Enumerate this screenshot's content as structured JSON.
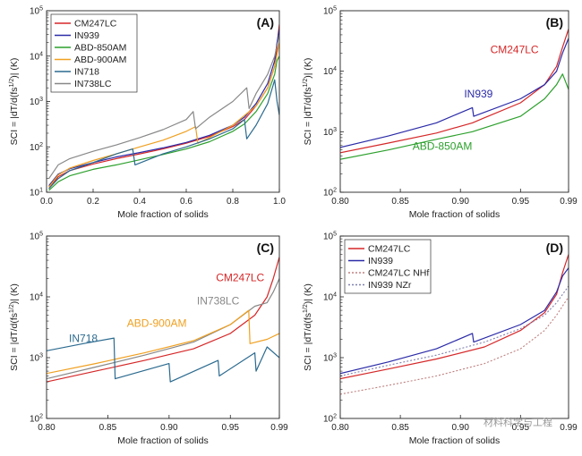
{
  "colors": {
    "CM247LC": "#d62728",
    "IN939": "#2a2aa8",
    "ABD-850AM": "#2ca02c",
    "ABD-900AM": "#f0a020",
    "IN718": "#2b6a8f",
    "IN738LC": "#888888",
    "CM247LC NHf": "#c08080",
    "IN939 NZr": "#8080b0"
  },
  "watermark": "材料科学与工程",
  "chart_data": [
    {
      "panel": "(A)",
      "type": "line",
      "xlabel": "Mole fraction of solids",
      "ylabel": "SCI = |dT/d(fs^1/2)| (K)",
      "xlim": [
        0,
        1.0
      ],
      "ylim": [
        10,
        100000
      ],
      "yscale": "log",
      "xticks": [
        "0.0",
        "0.2",
        "0.4",
        "0.6",
        "0.8",
        "1.0"
      ],
      "yticks": [
        "10^1",
        "10^2",
        "10^3",
        "10^4",
        "10^5"
      ],
      "legend": [
        "CM247LC",
        "IN939",
        "ABD-850AM",
        "ABD-900AM",
        "IN718",
        "IN738LC"
      ],
      "legend_position": "top-left",
      "series": [
        {
          "name": "CM247LC",
          "x": [
            0.01,
            0.05,
            0.1,
            0.2,
            0.3,
            0.4,
            0.5,
            0.6,
            0.7,
            0.8,
            0.85,
            0.9,
            0.95,
            0.98,
            0.99,
            0.995,
            1.0
          ],
          "y": [
            12,
            22,
            30,
            42,
            55,
            70,
            90,
            120,
            170,
            280,
            400,
            800,
            2000,
            6000,
            15000,
            30000,
            50000
          ]
        },
        {
          "name": "IN939",
          "x": [
            0.01,
            0.05,
            0.1,
            0.2,
            0.3,
            0.4,
            0.5,
            0.6,
            0.7,
            0.8,
            0.85,
            0.9,
            0.95,
            0.98,
            0.99,
            1.0
          ],
          "y": [
            14,
            25,
            33,
            45,
            60,
            75,
            95,
            125,
            180,
            300,
            450,
            900,
            2500,
            8000,
            20000,
            40000
          ]
        },
        {
          "name": "ABD-850AM",
          "x": [
            0.01,
            0.05,
            0.1,
            0.2,
            0.3,
            0.4,
            0.5,
            0.6,
            0.7,
            0.8,
            0.85,
            0.9,
            0.95,
            0.98,
            0.99,
            1.0
          ],
          "y": [
            11,
            17,
            23,
            32,
            40,
            52,
            68,
            90,
            130,
            220,
            320,
            600,
            1500,
            4000,
            8000,
            10000
          ]
        },
        {
          "name": "ABD-900AM",
          "x": [
            0.01,
            0.05,
            0.1,
            0.2,
            0.3,
            0.4,
            0.5,
            0.6,
            0.64,
            0.65,
            0.7,
            0.8,
            0.9,
            0.95,
            0.98,
            1.0
          ],
          "y": [
            13,
            24,
            34,
            50,
            70,
            100,
            140,
            220,
            280,
            120,
            160,
            300,
            800,
            2000,
            6000,
            20000
          ]
        },
        {
          "name": "IN718",
          "x": [
            0.01,
            0.05,
            0.1,
            0.2,
            0.3,
            0.37,
            0.38,
            0.5,
            0.6,
            0.7,
            0.8,
            0.85,
            0.86,
            0.9,
            0.95,
            0.98,
            0.99,
            1.0
          ],
          "y": [
            12,
            20,
            30,
            45,
            70,
            90,
            40,
            70,
            100,
            150,
            250,
            400,
            150,
            300,
            900,
            3000,
            1000,
            500
          ]
        },
        {
          "name": "IN738LC",
          "x": [
            0.01,
            0.05,
            0.1,
            0.2,
            0.3,
            0.4,
            0.5,
            0.6,
            0.63,
            0.64,
            0.7,
            0.8,
            0.86,
            0.87,
            0.9,
            0.95,
            0.98,
            1.0
          ],
          "y": [
            20,
            40,
            55,
            80,
            110,
            160,
            240,
            400,
            600,
            250,
            450,
            1000,
            2000,
            700,
            1500,
            4000,
            10000,
            30000
          ]
        }
      ]
    },
    {
      "panel": "(B)",
      "type": "line",
      "xlabel": "Mole fraction of solids",
      "ylabel": "SCI = |dT/d(fs^1/2)| (K)",
      "xlim": [
        0.8,
        0.99
      ],
      "ylim": [
        100,
        100000
      ],
      "yscale": "log",
      "xticks": [
        "0.80",
        "0.85",
        "0.90",
        "0.95",
        "0.99"
      ],
      "yticks": [
        "10^2",
        "10^3",
        "10^4",
        "10^5"
      ],
      "annotations": [
        "CM247LC",
        "IN939",
        "ABD-850AM"
      ],
      "series": [
        {
          "name": "CM247LC",
          "x": [
            0.8,
            0.84,
            0.88,
            0.91,
            0.92,
            0.95,
            0.97,
            0.98,
            0.985,
            0.99
          ],
          "y": [
            450,
            650,
            950,
            1400,
            1700,
            3000,
            6000,
            12000,
            25000,
            50000
          ]
        },
        {
          "name": "IN939",
          "x": [
            0.8,
            0.84,
            0.88,
            0.91,
            0.911,
            0.95,
            0.97,
            0.98,
            0.985,
            0.99
          ],
          "y": [
            550,
            850,
            1400,
            2500,
            1800,
            3500,
            6000,
            10000,
            20000,
            35000
          ]
        },
        {
          "name": "ABD-850AM",
          "x": [
            0.8,
            0.84,
            0.88,
            0.91,
            0.95,
            0.97,
            0.98,
            0.985,
            0.99
          ],
          "y": [
            350,
            500,
            750,
            1000,
            1800,
            3500,
            6000,
            9000,
            5000
          ]
        }
      ]
    },
    {
      "panel": "(C)",
      "type": "line",
      "xlabel": "Mole fraction of solids",
      "ylabel": "SCI = |dT/d(fs^1/2)| (K)",
      "xlim": [
        0.8,
        0.99
      ],
      "ylim": [
        100,
        100000
      ],
      "yscale": "log",
      "xticks": [
        "0.80",
        "0.85",
        "0.90",
        "0.95",
        "0.99"
      ],
      "yticks": [
        "10^2",
        "10^3",
        "10^4",
        "10^5"
      ],
      "annotations": [
        "CM247LC",
        "IN738LC",
        "ABD-900AM",
        "IN718"
      ],
      "series": [
        {
          "name": "CM247LC",
          "x": [
            0.8,
            0.84,
            0.88,
            0.92,
            0.95,
            0.97,
            0.98,
            0.985,
            0.99
          ],
          "y": [
            400,
            600,
            900,
            1400,
            2500,
            5000,
            10000,
            20000,
            45000
          ]
        },
        {
          "name": "IN738LC",
          "x": [
            0.8,
            0.84,
            0.88,
            0.92,
            0.95,
            0.97,
            0.98,
            0.985,
            0.99
          ],
          "y": [
            450,
            700,
            1100,
            1800,
            3500,
            7000,
            8000,
            12000,
            20000
          ]
        },
        {
          "name": "ABD-900AM",
          "x": [
            0.8,
            0.84,
            0.88,
            0.92,
            0.95,
            0.965,
            0.966,
            0.98,
            0.99
          ],
          "y": [
            550,
            800,
            1200,
            1900,
            3500,
            6000,
            1700,
            2000,
            2500
          ]
        },
        {
          "name": "IN718",
          "x": [
            0.8,
            0.83,
            0.855,
            0.856,
            0.9,
            0.901,
            0.94,
            0.941,
            0.97,
            0.971,
            0.98,
            0.99
          ],
          "y": [
            1300,
            1700,
            2100,
            450,
            800,
            400,
            900,
            500,
            1200,
            600,
            1500,
            1000
          ]
        }
      ]
    },
    {
      "panel": "(D)",
      "type": "line",
      "xlabel": "Mole fraction of solids",
      "ylabel": "SCI = |dT/d(fs^1/2)| (K)",
      "xlim": [
        0.8,
        0.99
      ],
      "ylim": [
        100,
        100000
      ],
      "yscale": "log",
      "xticks": [
        "0.80",
        "0.85",
        "0.90",
        "0.95",
        "0.99"
      ],
      "yticks": [
        "10^2",
        "10^3",
        "10^4",
        "10^5"
      ],
      "legend": [
        "CM247LC",
        "IN939",
        "CM247LC NHf",
        "IN939 NZr"
      ],
      "legend_position": "top-left",
      "series": [
        {
          "name": "CM247LC",
          "x": [
            0.8,
            0.84,
            0.88,
            0.92,
            0.95,
            0.97,
            0.98,
            0.985,
            0.99
          ],
          "y": [
            450,
            650,
            950,
            1500,
            2800,
            5500,
            11000,
            25000,
            50000
          ]
        },
        {
          "name": "IN939",
          "x": [
            0.8,
            0.84,
            0.88,
            0.91,
            0.911,
            0.95,
            0.97,
            0.98,
            0.985,
            0.99
          ],
          "y": [
            550,
            850,
            1400,
            2500,
            1800,
            3500,
            6000,
            12000,
            22000,
            30000
          ]
        },
        {
          "name": "CM247LC NHf",
          "x": [
            0.8,
            0.84,
            0.88,
            0.92,
            0.95,
            0.97,
            0.98,
            0.99
          ],
          "y": [
            250,
            350,
            500,
            800,
            1400,
            2800,
            5000,
            10000
          ]
        },
        {
          "name": "IN939 NZr",
          "x": [
            0.8,
            0.84,
            0.88,
            0.92,
            0.95,
            0.97,
            0.98,
            0.99
          ],
          "y": [
            500,
            750,
            1100,
            1800,
            3000,
            5000,
            8000,
            15000
          ]
        }
      ]
    }
  ]
}
